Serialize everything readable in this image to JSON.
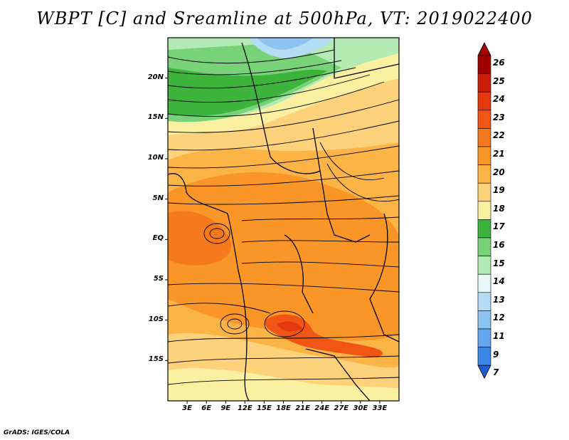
{
  "title": "WBPT [C] and Sreamline at 500hPa, VT: 2019022400",
  "footer": "GrADS: IGES/COLA",
  "map": {
    "lon_range": [
      0,
      36
    ],
    "lat_range": [
      -20,
      25
    ],
    "lat_ticks": [
      {
        "value": 20,
        "label": "20N"
      },
      {
        "value": 15,
        "label": "15N"
      },
      {
        "value": 10,
        "label": "10N"
      },
      {
        "value": 5,
        "label": "5N"
      },
      {
        "value": 0,
        "label": "EQ"
      },
      {
        "value": -5,
        "label": "5S"
      },
      {
        "value": -10,
        "label": "10S"
      },
      {
        "value": -15,
        "label": "15S"
      }
    ],
    "lon_ticks": [
      {
        "value": 3,
        "label": "3E"
      },
      {
        "value": 6,
        "label": "6E"
      },
      {
        "value": 9,
        "label": "9E"
      },
      {
        "value": 12,
        "label": "12E"
      },
      {
        "value": 15,
        "label": "15E"
      },
      {
        "value": 18,
        "label": "18E"
      },
      {
        "value": 21,
        "label": "21E"
      },
      {
        "value": 24,
        "label": "24E"
      },
      {
        "value": 27,
        "label": "27E"
      },
      {
        "value": 30,
        "label": "30E"
      },
      {
        "value": 33,
        "label": "33E"
      }
    ]
  },
  "colorbar": {
    "levels": [
      {
        "label": "26",
        "color": "#a00000"
      },
      {
        "label": "25",
        "color": "#c81e0a"
      },
      {
        "label": "24",
        "color": "#e6380f"
      },
      {
        "label": "23",
        "color": "#f05514"
      },
      {
        "label": "22",
        "color": "#f57a1e"
      },
      {
        "label": "21",
        "color": "#fa9628"
      },
      {
        "label": "20",
        "color": "#fdb446"
      },
      {
        "label": "19",
        "color": "#fdd27a"
      },
      {
        "label": "18",
        "color": "#fbf0a0"
      },
      {
        "label": "17",
        "color": "#3cb43c"
      },
      {
        "label": "16",
        "color": "#78d278"
      },
      {
        "label": "15",
        "color": "#b4eab4"
      },
      {
        "label": "14",
        "color": "#e6f8f8"
      },
      {
        "label": "13",
        "color": "#b4dcf5"
      },
      {
        "label": "12",
        "color": "#8cc3f0"
      },
      {
        "label": "11",
        "color": "#64a5eb"
      },
      {
        "label": "9",
        "color": "#3c87e6"
      },
      {
        "label": "7",
        "color": "#1e69dc"
      }
    ],
    "min_color": "#1e5ad2"
  }
}
